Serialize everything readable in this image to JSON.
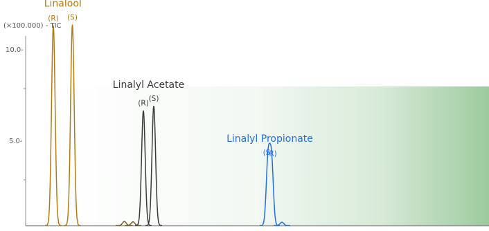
{
  "chart_data": {
    "type": "line",
    "title": "",
    "xlabel": "",
    "ylabel": "(×100.000) - TIC",
    "ylim": [
      0,
      11.2
    ],
    "y_ticks": [
      {
        "value": 10.0,
        "label": "10.0-"
      },
      {
        "value": 5.0,
        "label": "5.0-"
      }
    ],
    "baseline_peaks": [
      {
        "x": 38.5,
        "height": 0.22
      },
      {
        "x": 41.0,
        "height": 0.2
      }
    ],
    "noise_peaks": [
      {
        "x": 84.0,
        "height": 0.18
      }
    ],
    "groups": [
      {
        "title": "Linalool",
        "color": "#b57a10",
        "peaks": [
          {
            "label": "(R)",
            "x": 18.0,
            "height": 10.95
          },
          {
            "label": "(S)",
            "x": 23.5,
            "height": 11.0
          }
        ]
      },
      {
        "title": "Linalyl Acetate",
        "color": "#3a3a3a",
        "peaks": [
          {
            "label": "(R)",
            "x": 44.0,
            "height": 6.3
          },
          {
            "label": "(S)",
            "x": 47.0,
            "height": 6.55
          }
        ]
      },
      {
        "title": "Linalyl Propionate",
        "color": "#1f6fe8",
        "peaks": [
          {
            "label": "(S)",
            "x": 80.0,
            "height": 3.6
          },
          {
            "label": "(R)",
            "x": 81.0,
            "height": 3.55
          }
        ]
      }
    ],
    "grid": false,
    "background_gradient": [
      "#ffffff",
      "#9ccb9e"
    ]
  }
}
